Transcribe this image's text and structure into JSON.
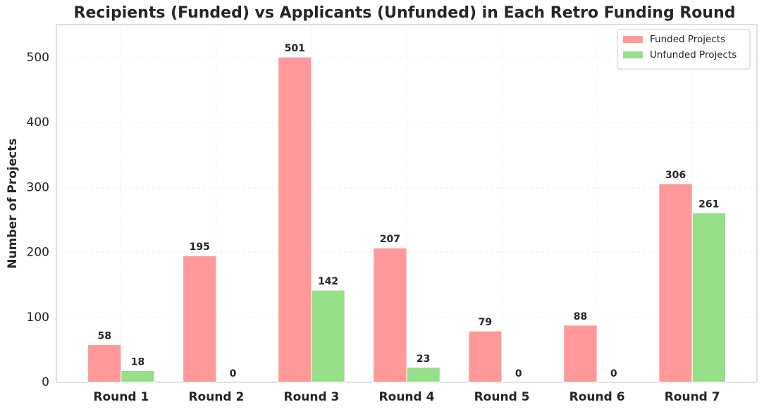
{
  "chart_data": {
    "type": "bar",
    "title": "Recipients (Funded) vs Applicants (Unfunded) in Each Retro Funding Round",
    "y_label": "Number of Projects",
    "categories": [
      "Round 1",
      "Round 2",
      "Round 3",
      "Round 4",
      "Round 5",
      "Round 6",
      "Round 7"
    ],
    "series": [
      {
        "name": "Funded Projects",
        "color": "#ff9999",
        "values": [
          58,
          195,
          501,
          207,
          79,
          88,
          306
        ]
      },
      {
        "name": "Unfunded Projects",
        "color": "#98df8a",
        "values": [
          18,
          0,
          142,
          23,
          0,
          0,
          261
        ]
      }
    ],
    "ylim": [
      0,
      551
    ],
    "yticks": [
      0,
      100,
      200,
      300,
      400,
      500
    ],
    "grid": true,
    "legend": "upper right"
  }
}
